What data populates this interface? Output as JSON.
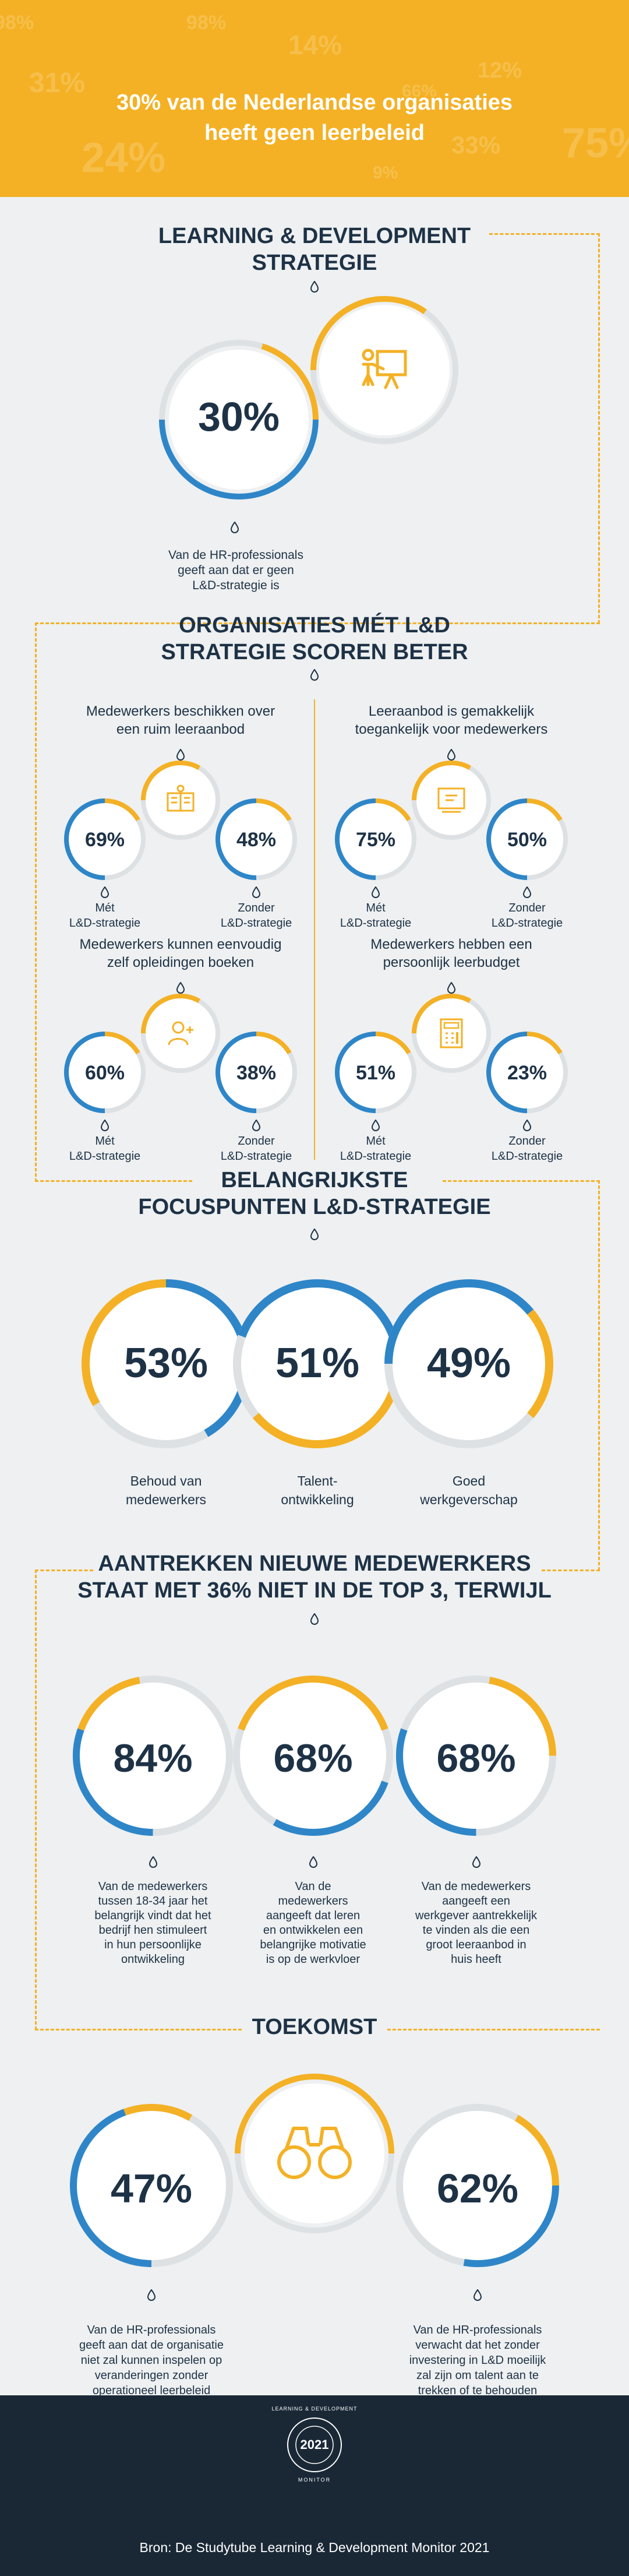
{
  "hero": {
    "title_line1": "30% van de Nederlandse organisaties",
    "title_line2": "heeft geen leerbeleid",
    "bg_numbers": [
      "98%",
      "14%",
      "31%",
      "12%",
      "66%",
      "24%",
      "33%",
      "75%",
      "9%"
    ]
  },
  "section1": {
    "title_line1": "LEARNING & DEVELOPMENT",
    "title_line2": "STRATEGIE",
    "stat": "30%",
    "icon": "presentation-icon",
    "caption_line1": "Van de HR-professionals",
    "caption_line2": "geeft aan dat er geen",
    "caption_line3": "L&D-strategie is"
  },
  "section2": {
    "title_line1": "ORGANISATIES MÉT L&D",
    "title_line2": "STRATEGIE SCOREN BETER",
    "met_label_1": "Mét",
    "zonder_label_1": "Zonder",
    "label_2": "L&D-strategie",
    "items": [
      {
        "title_line1": "Medewerkers beschikken over",
        "title_line2": "een ruim leeraanbod",
        "met": "69%",
        "zonder": "48%",
        "icon": "books-icon"
      },
      {
        "title_line1": "Leeraanbod is gemakkelijk",
        "title_line2": "toegankelijk voor medewerkers",
        "met": "75%",
        "zonder": "50%",
        "icon": "screen-icon"
      },
      {
        "title_line1": "Medewerkers kunnen eenvoudig",
        "title_line2": "zelf opleidingen boeken",
        "met": "60%",
        "zonder": "38%",
        "icon": "add-user-icon"
      },
      {
        "title_line1": "Medewerkers hebben een",
        "title_line2": "persoonlijk leerbudget",
        "met": "51%",
        "zonder": "23%",
        "icon": "calculator-icon"
      }
    ]
  },
  "section3": {
    "title_line1": "BELANGRIJKSTE",
    "title_line2": "FOCUSPUNTEN L&D-STRATEGIE",
    "items": [
      {
        "value": "53%",
        "label_line1": "Behoud van",
        "label_line2": "medewerkers"
      },
      {
        "value": "51%",
        "label_line1": "Talent-",
        "label_line2": "ontwikkeling"
      },
      {
        "value": "49%",
        "label_line1": "Goed",
        "label_line2": "werkgeverschap"
      }
    ]
  },
  "section4": {
    "title_line1": "AANTREKKEN NIEUWE MEDEWERKERS",
    "title_line2": "STAAT MET 36% NIET IN DE TOP 3, TERWIJL",
    "items": [
      {
        "value": "84%",
        "lines": [
          "Van de medewerkers",
          "tussen 18-34 jaar het",
          "belangrijk vindt dat het",
          "bedrijf hen stimuleert",
          "in hun persoonlijke",
          "ontwikkeling"
        ]
      },
      {
        "value": "68%",
        "lines": [
          "Van de",
          "medewerkers",
          "aangeeft dat leren",
          "en ontwikkelen een",
          "belangrijke motivatie",
          "is op de werkvloer"
        ]
      },
      {
        "value": "68%",
        "lines": [
          "Van de medewerkers",
          "aangeeft een",
          "werkgever aantrekkelijk",
          "te vinden als die een",
          "groot leeraanbod in",
          "huis heeft"
        ]
      }
    ]
  },
  "section5": {
    "title": "TOEKOMST",
    "icon": "binoculars-icon",
    "items": [
      {
        "value": "47%",
        "lines": [
          "Van de HR-professionals",
          "geeft aan dat de organisatie",
          "niet zal kunnen inspelen op",
          "veranderingen zonder",
          "operationeel leerbeleid"
        ]
      },
      {
        "value": "62%",
        "lines": [
          "Van de HR-professionals",
          "verwacht dat het zonder",
          "investering in L&D moeilijk",
          "zal zijn om talent aan te",
          "trekken of te behouden"
        ]
      }
    ]
  },
  "footer": {
    "badge_year": "2021",
    "badge_text": "LEARNING & DEVELOPMENT",
    "badge_sub": "MONITOR",
    "source": "Bron: De Studytube Learning & Development Monitor 2021"
  },
  "colors": {
    "orange": "#f4b125",
    "navy": "#1e3246",
    "blue": "#2e86c8",
    "bg": "#eef0f1",
    "footer": "#1a2836"
  }
}
